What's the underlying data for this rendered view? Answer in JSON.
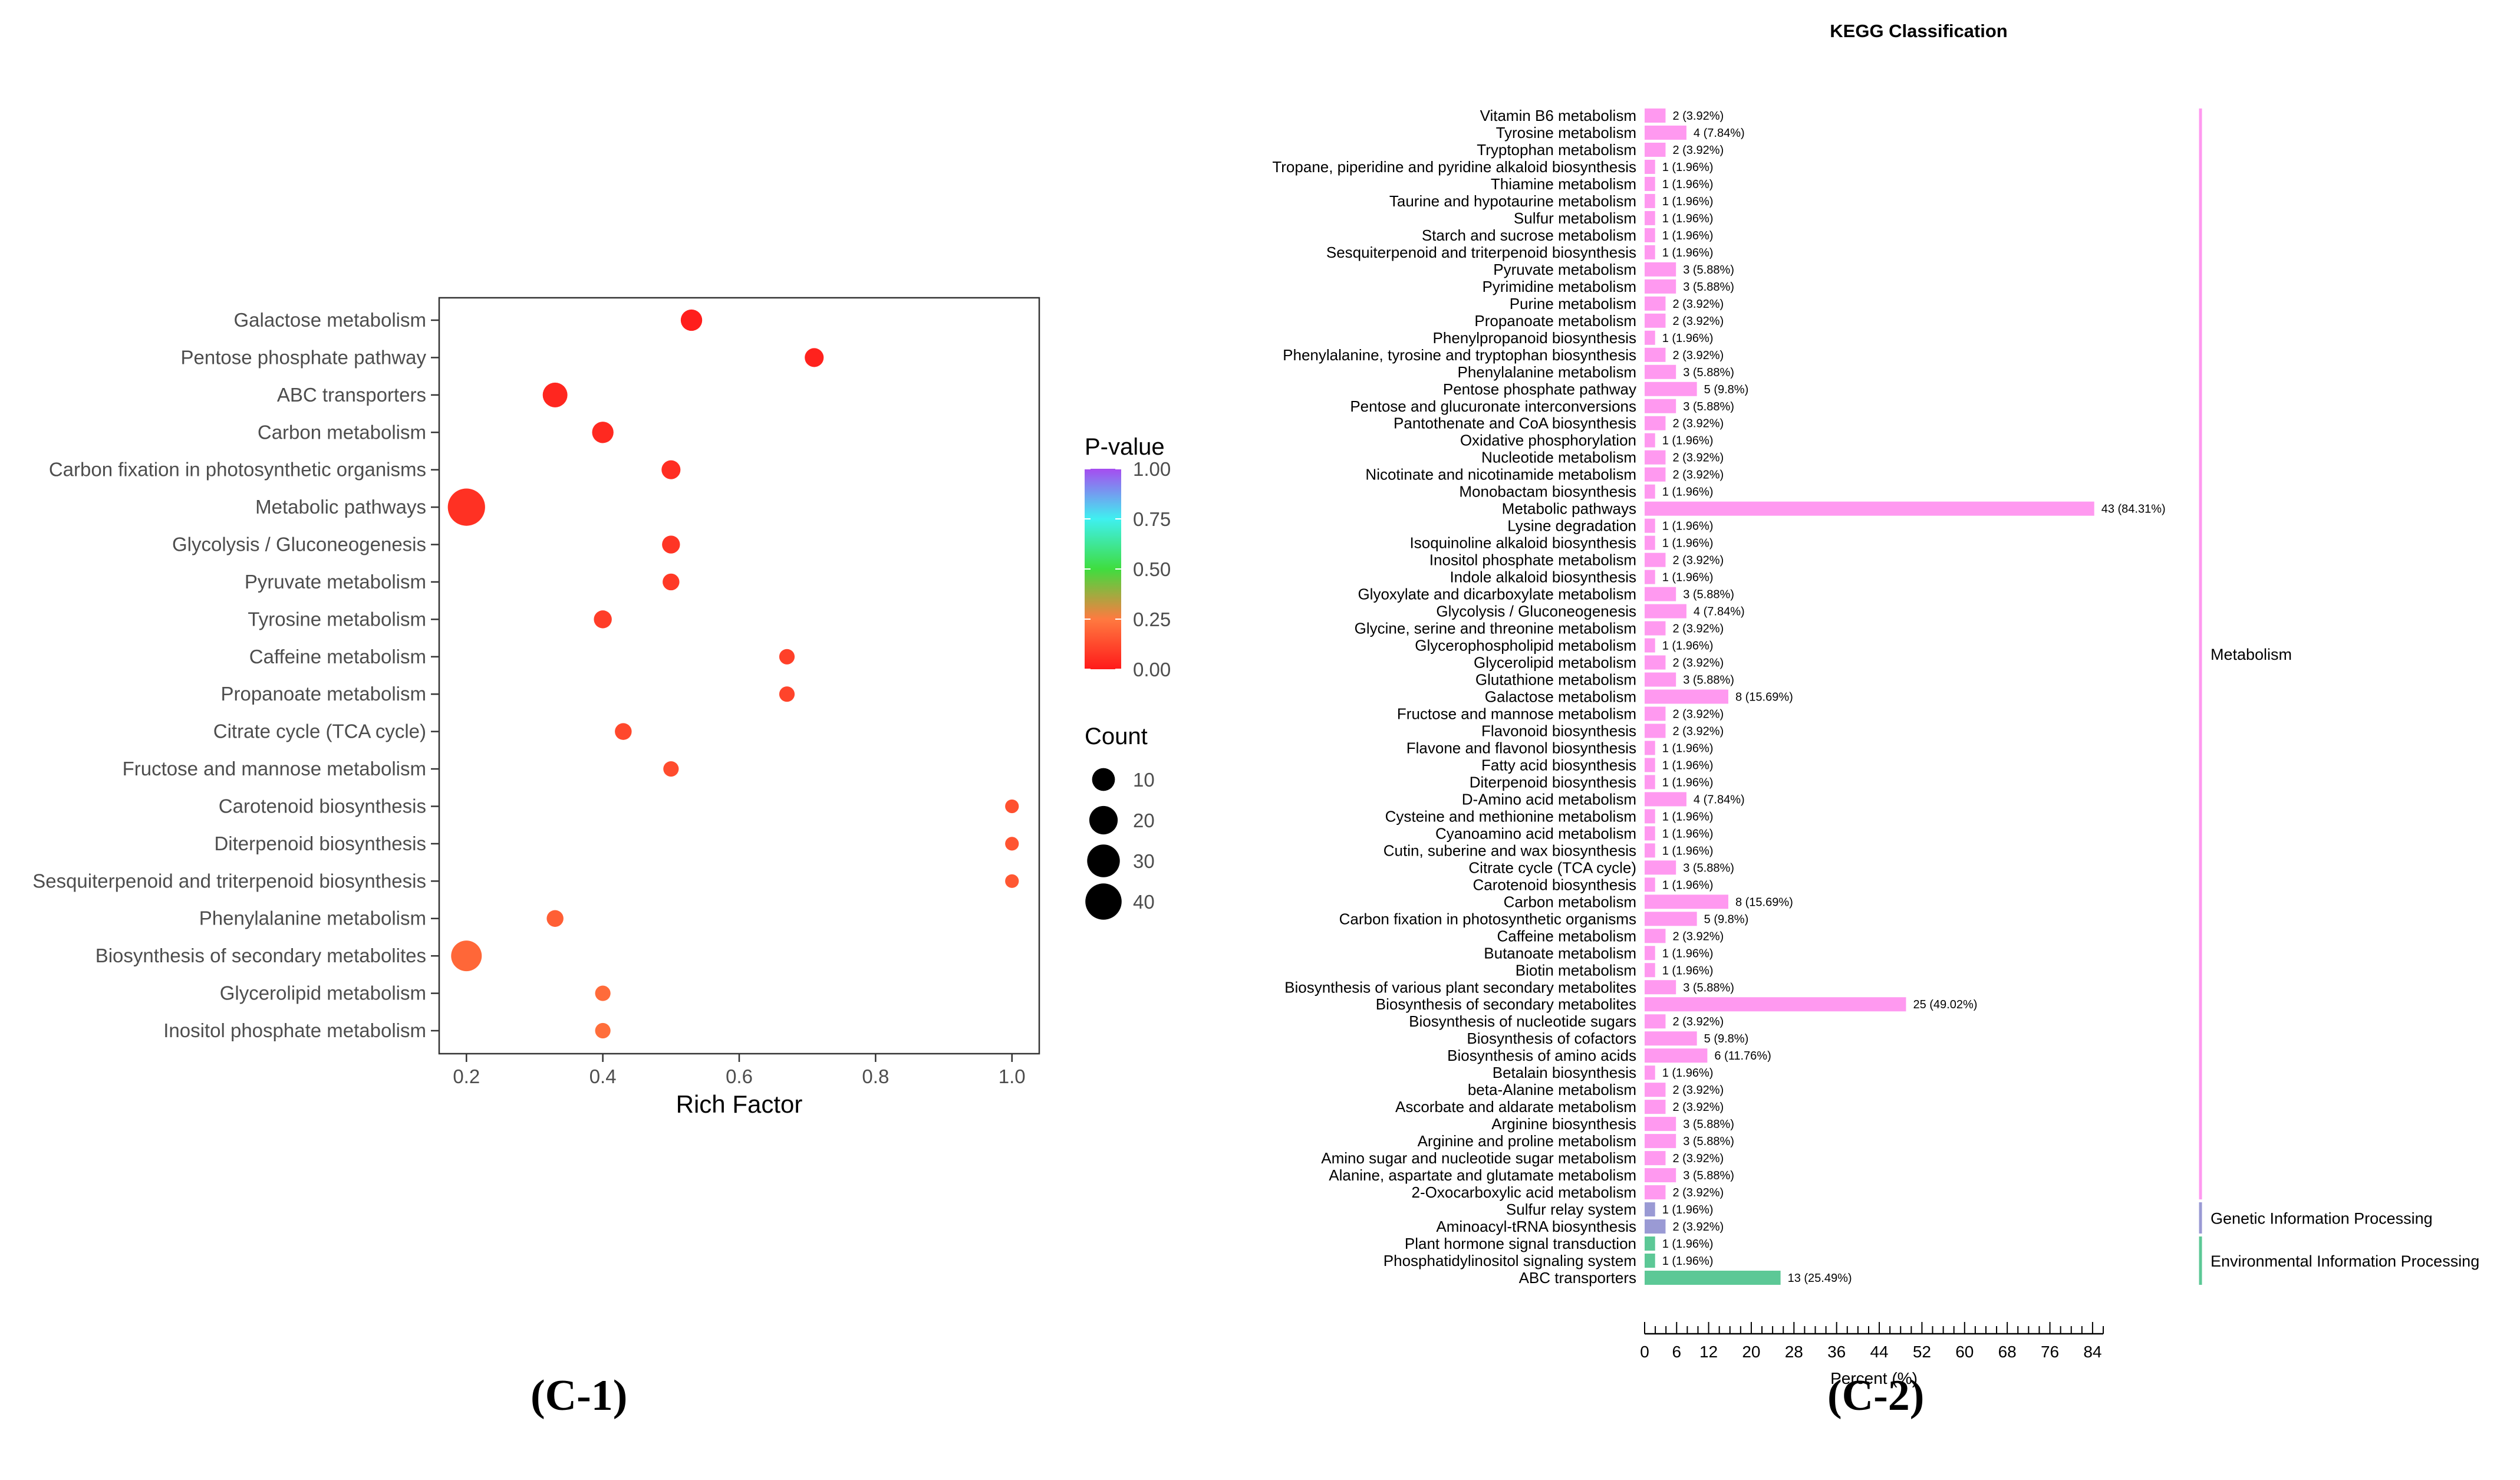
{
  "panel_labels": {
    "c1": "(C-1)",
    "c2": "(C-2)"
  },
  "chart_data": [
    {
      "type": "scatter",
      "title": "",
      "xlabel": "Rich Factor",
      "ylabel": "",
      "xlim": [
        0.16,
        1.04
      ],
      "xticks": [
        0.2,
        0.4,
        0.6,
        0.8,
        1.0
      ],
      "xtick_labels": [
        "0.2",
        "0.4",
        "0.6",
        "0.8",
        "1.0"
      ],
      "grid": false,
      "legend_position": "right",
      "color_legend": {
        "title": "P-value",
        "ticks": [
          1.0,
          0.75,
          0.5,
          0.25,
          0.0
        ],
        "tick_labels": [
          "1.00",
          "0.75",
          "0.50",
          "0.25",
          "0.00"
        ],
        "colors": {
          "p0": "#ff1a1a",
          "p025": "#ff7a40",
          "p050": "#3fdd3f",
          "p075": "#3ff0f0",
          "p100": "#a64cf0"
        }
      },
      "size_legend": {
        "title": "Count",
        "values": [
          10,
          20,
          30,
          40
        ],
        "labels": [
          "10",
          "20",
          "30",
          "40"
        ]
      },
      "points": [
        {
          "name": "Galactose metabolism",
          "rich_factor": 0.53,
          "count": 8,
          "p_value": 0.01
        },
        {
          "name": "Pentose phosphate pathway",
          "rich_factor": 0.71,
          "count": 5,
          "p_value": 0.02
        },
        {
          "name": "ABC transporters",
          "rich_factor": 0.33,
          "count": 13,
          "p_value": 0.03
        },
        {
          "name": "Carbon metabolism",
          "rich_factor": 0.4,
          "count": 8,
          "p_value": 0.04
        },
        {
          "name": "Carbon fixation in photosynthetic organisms",
          "rich_factor": 0.5,
          "count": 5,
          "p_value": 0.05
        },
        {
          "name": "Metabolic pathways",
          "rich_factor": 0.2,
          "count": 43,
          "p_value": 0.06
        },
        {
          "name": "Glycolysis / Gluconeogenesis",
          "rich_factor": 0.5,
          "count": 4,
          "p_value": 0.07
        },
        {
          "name": "Pyruvate metabolism",
          "rich_factor": 0.5,
          "count": 3,
          "p_value": 0.08
        },
        {
          "name": "Tyrosine metabolism",
          "rich_factor": 0.4,
          "count": 4,
          "p_value": 0.09
        },
        {
          "name": "Caffeine metabolism",
          "rich_factor": 0.67,
          "count": 2,
          "p_value": 0.1
        },
        {
          "name": "Propanoate metabolism",
          "rich_factor": 0.67,
          "count": 2,
          "p_value": 0.11
        },
        {
          "name": "Citrate cycle (TCA cycle)",
          "rich_factor": 0.43,
          "count": 3,
          "p_value": 0.12
        },
        {
          "name": "Fructose and mannose metabolism",
          "rich_factor": 0.5,
          "count": 2,
          "p_value": 0.13
        },
        {
          "name": "Carotenoid biosynthesis",
          "rich_factor": 1.0,
          "count": 1,
          "p_value": 0.14
        },
        {
          "name": "Diterpenoid biosynthesis",
          "rich_factor": 1.0,
          "count": 1,
          "p_value": 0.15
        },
        {
          "name": "Sesquiterpenoid and triterpenoid biosynthesis",
          "rich_factor": 1.0,
          "count": 1,
          "p_value": 0.16
        },
        {
          "name": "Phenylalanine metabolism",
          "rich_factor": 0.33,
          "count": 3,
          "p_value": 0.18
        },
        {
          "name": "Biosynthesis of secondary metabolites",
          "rich_factor": 0.2,
          "count": 25,
          "p_value": 0.2
        },
        {
          "name": "Glycerolipid metabolism",
          "rich_factor": 0.4,
          "count": 2,
          "p_value": 0.21
        },
        {
          "name": "Inositol phosphate metabolism",
          "rich_factor": 0.4,
          "count": 2,
          "p_value": 0.22
        }
      ]
    },
    {
      "type": "bar",
      "orientation": "horizontal",
      "title": "KEGG Classification",
      "xlabel": "Percent (%)",
      "ylabel": "",
      "xlim": [
        0,
        86
      ],
      "xticks": [
        0,
        6,
        12,
        20,
        28,
        36,
        44,
        52,
        60,
        68,
        76,
        84
      ],
      "xtick_labels": [
        "0",
        "6",
        "12",
        "20",
        "28",
        "36",
        "44",
        "52",
        "60",
        "68",
        "76",
        "84"
      ],
      "grid": false,
      "groups": [
        {
          "name": "Metabolism",
          "color": "#ff99f0"
        },
        {
          "name": "Genetic Information Processing",
          "color": "#9a9ad4"
        },
        {
          "name": "Environmental Information Processing",
          "color": "#5cc896"
        }
      ],
      "bars": [
        {
          "name": "Vitamin B6 metabolism",
          "count": 2,
          "percent": 3.92,
          "label": "2 (3.92%)",
          "group": 0
        },
        {
          "name": "Tyrosine metabolism",
          "count": 4,
          "percent": 7.84,
          "label": "4 (7.84%)",
          "group": 0
        },
        {
          "name": "Tryptophan metabolism",
          "count": 2,
          "percent": 3.92,
          "label": "2 (3.92%)",
          "group": 0
        },
        {
          "name": "Tropane, piperidine and pyridine alkaloid biosynthesis",
          "count": 1,
          "percent": 1.96,
          "label": "1 (1.96%)",
          "group": 0
        },
        {
          "name": "Thiamine metabolism",
          "count": 1,
          "percent": 1.96,
          "label": "1 (1.96%)",
          "group": 0
        },
        {
          "name": "Taurine and hypotaurine metabolism",
          "count": 1,
          "percent": 1.96,
          "label": "1 (1.96%)",
          "group": 0
        },
        {
          "name": "Sulfur metabolism",
          "count": 1,
          "percent": 1.96,
          "label": "1 (1.96%)",
          "group": 0
        },
        {
          "name": "Starch and sucrose metabolism",
          "count": 1,
          "percent": 1.96,
          "label": "1 (1.96%)",
          "group": 0
        },
        {
          "name": "Sesquiterpenoid and triterpenoid biosynthesis",
          "count": 1,
          "percent": 1.96,
          "label": "1 (1.96%)",
          "group": 0
        },
        {
          "name": "Pyruvate metabolism",
          "count": 3,
          "percent": 5.88,
          "label": "3 (5.88%)",
          "group": 0
        },
        {
          "name": "Pyrimidine metabolism",
          "count": 3,
          "percent": 5.88,
          "label": "3 (5.88%)",
          "group": 0
        },
        {
          "name": "Purine metabolism",
          "count": 2,
          "percent": 3.92,
          "label": "2 (3.92%)",
          "group": 0
        },
        {
          "name": "Propanoate metabolism",
          "count": 2,
          "percent": 3.92,
          "label": "2 (3.92%)",
          "group": 0
        },
        {
          "name": "Phenylpropanoid biosynthesis",
          "count": 1,
          "percent": 1.96,
          "label": "1 (1.96%)",
          "group": 0
        },
        {
          "name": "Phenylalanine, tyrosine and tryptophan biosynthesis",
          "count": 2,
          "percent": 3.92,
          "label": "2 (3.92%)",
          "group": 0
        },
        {
          "name": "Phenylalanine metabolism",
          "count": 3,
          "percent": 5.88,
          "label": "3 (5.88%)",
          "group": 0
        },
        {
          "name": "Pentose phosphate pathway",
          "count": 5,
          "percent": 9.8,
          "label": "5 (9.8%)",
          "group": 0
        },
        {
          "name": "Pentose and glucuronate interconversions",
          "count": 3,
          "percent": 5.88,
          "label": "3 (5.88%)",
          "group": 0
        },
        {
          "name": "Pantothenate and CoA biosynthesis",
          "count": 2,
          "percent": 3.92,
          "label": "2 (3.92%)",
          "group": 0
        },
        {
          "name": "Oxidative phosphorylation",
          "count": 1,
          "percent": 1.96,
          "label": "1 (1.96%)",
          "group": 0
        },
        {
          "name": "Nucleotide metabolism",
          "count": 2,
          "percent": 3.92,
          "label": "2 (3.92%)",
          "group": 0
        },
        {
          "name": "Nicotinate and nicotinamide metabolism",
          "count": 2,
          "percent": 3.92,
          "label": "2 (3.92%)",
          "group": 0
        },
        {
          "name": "Monobactam biosynthesis",
          "count": 1,
          "percent": 1.96,
          "label": "1 (1.96%)",
          "group": 0
        },
        {
          "name": "Metabolic pathways",
          "count": 43,
          "percent": 84.31,
          "label": "43 (84.31%)",
          "group": 0
        },
        {
          "name": "Lysine degradation",
          "count": 1,
          "percent": 1.96,
          "label": "1 (1.96%)",
          "group": 0
        },
        {
          "name": "Isoquinoline alkaloid biosynthesis",
          "count": 1,
          "percent": 1.96,
          "label": "1 (1.96%)",
          "group": 0
        },
        {
          "name": "Inositol phosphate metabolism",
          "count": 2,
          "percent": 3.92,
          "label": "2 (3.92%)",
          "group": 0
        },
        {
          "name": "Indole alkaloid biosynthesis",
          "count": 1,
          "percent": 1.96,
          "label": "1 (1.96%)",
          "group": 0
        },
        {
          "name": "Glyoxylate and dicarboxylate metabolism",
          "count": 3,
          "percent": 5.88,
          "label": "3 (5.88%)",
          "group": 0
        },
        {
          "name": "Glycolysis / Gluconeogenesis",
          "count": 4,
          "percent": 7.84,
          "label": "4 (7.84%)",
          "group": 0
        },
        {
          "name": "Glycine, serine and threonine metabolism",
          "count": 2,
          "percent": 3.92,
          "label": "2 (3.92%)",
          "group": 0
        },
        {
          "name": "Glycerophospholipid metabolism",
          "count": 1,
          "percent": 1.96,
          "label": "1 (1.96%)",
          "group": 0
        },
        {
          "name": "Glycerolipid metabolism",
          "count": 2,
          "percent": 3.92,
          "label": "2 (3.92%)",
          "group": 0
        },
        {
          "name": "Glutathione metabolism",
          "count": 3,
          "percent": 5.88,
          "label": "3 (5.88%)",
          "group": 0
        },
        {
          "name": "Galactose metabolism",
          "count": 8,
          "percent": 15.69,
          "label": "8 (15.69%)",
          "group": 0
        },
        {
          "name": "Fructose and mannose metabolism",
          "count": 2,
          "percent": 3.92,
          "label": "2 (3.92%)",
          "group": 0
        },
        {
          "name": "Flavonoid biosynthesis",
          "count": 2,
          "percent": 3.92,
          "label": "2 (3.92%)",
          "group": 0
        },
        {
          "name": "Flavone and flavonol biosynthesis",
          "count": 1,
          "percent": 1.96,
          "label": "1 (1.96%)",
          "group": 0
        },
        {
          "name": "Fatty acid biosynthesis",
          "count": 1,
          "percent": 1.96,
          "label": "1 (1.96%)",
          "group": 0
        },
        {
          "name": "Diterpenoid biosynthesis",
          "count": 1,
          "percent": 1.96,
          "label": "1 (1.96%)",
          "group": 0
        },
        {
          "name": "D-Amino acid metabolism",
          "count": 4,
          "percent": 7.84,
          "label": "4 (7.84%)",
          "group": 0
        },
        {
          "name": "Cysteine and methionine metabolism",
          "count": 1,
          "percent": 1.96,
          "label": "1 (1.96%)",
          "group": 0
        },
        {
          "name": "Cyanoamino acid metabolism",
          "count": 1,
          "percent": 1.96,
          "label": "1 (1.96%)",
          "group": 0
        },
        {
          "name": "Cutin, suberine and wax biosynthesis",
          "count": 1,
          "percent": 1.96,
          "label": "1 (1.96%)",
          "group": 0
        },
        {
          "name": "Citrate cycle (TCA cycle)",
          "count": 3,
          "percent": 5.88,
          "label": "3 (5.88%)",
          "group": 0
        },
        {
          "name": "Carotenoid biosynthesis",
          "count": 1,
          "percent": 1.96,
          "label": "1 (1.96%)",
          "group": 0
        },
        {
          "name": "Carbon metabolism",
          "count": 8,
          "percent": 15.69,
          "label": "8 (15.69%)",
          "group": 0
        },
        {
          "name": "Carbon fixation in photosynthetic organisms",
          "count": 5,
          "percent": 9.8,
          "label": "5 (9.8%)",
          "group": 0
        },
        {
          "name": "Caffeine metabolism",
          "count": 2,
          "percent": 3.92,
          "label": "2 (3.92%)",
          "group": 0
        },
        {
          "name": "Butanoate metabolism",
          "count": 1,
          "percent": 1.96,
          "label": "1 (1.96%)",
          "group": 0
        },
        {
          "name": "Biotin metabolism",
          "count": 1,
          "percent": 1.96,
          "label": "1 (1.96%)",
          "group": 0
        },
        {
          "name": "Biosynthesis of various plant secondary metabolites",
          "count": 3,
          "percent": 5.88,
          "label": "3 (5.88%)",
          "group": 0
        },
        {
          "name": "Biosynthesis of secondary metabolites",
          "count": 25,
          "percent": 49.02,
          "label": "25 (49.02%)",
          "group": 0
        },
        {
          "name": "Biosynthesis of nucleotide sugars",
          "count": 2,
          "percent": 3.92,
          "label": "2 (3.92%)",
          "group": 0
        },
        {
          "name": "Biosynthesis of cofactors",
          "count": 5,
          "percent": 9.8,
          "label": "5 (9.8%)",
          "group": 0
        },
        {
          "name": "Biosynthesis of amino acids",
          "count": 6,
          "percent": 11.76,
          "label": "6 (11.76%)",
          "group": 0
        },
        {
          "name": "Betalain biosynthesis",
          "count": 1,
          "percent": 1.96,
          "label": "1 (1.96%)",
          "group": 0
        },
        {
          "name": "beta-Alanine metabolism",
          "count": 2,
          "percent": 3.92,
          "label": "2 (3.92%)",
          "group": 0
        },
        {
          "name": "Ascorbate and aldarate metabolism",
          "count": 2,
          "percent": 3.92,
          "label": "2 (3.92%)",
          "group": 0
        },
        {
          "name": "Arginine biosynthesis",
          "count": 3,
          "percent": 5.88,
          "label": "3 (5.88%)",
          "group": 0
        },
        {
          "name": "Arginine and proline metabolism",
          "count": 3,
          "percent": 5.88,
          "label": "3 (5.88%)",
          "group": 0
        },
        {
          "name": "Amino sugar and nucleotide sugar metabolism",
          "count": 2,
          "percent": 3.92,
          "label": "2 (3.92%)",
          "group": 0
        },
        {
          "name": "Alanine, aspartate and glutamate metabolism",
          "count": 3,
          "percent": 5.88,
          "label": "3 (5.88%)",
          "group": 0
        },
        {
          "name": "2-Oxocarboxylic acid metabolism",
          "count": 2,
          "percent": 3.92,
          "label": "2 (3.92%)",
          "group": 0
        },
        {
          "name": "Sulfur relay system",
          "count": 1,
          "percent": 1.96,
          "label": "1 (1.96%)",
          "group": 1
        },
        {
          "name": "Aminoacyl-tRNA biosynthesis",
          "count": 2,
          "percent": 3.92,
          "label": "2 (3.92%)",
          "group": 1
        },
        {
          "name": "Plant hormone signal transduction",
          "count": 1,
          "percent": 1.96,
          "label": "1 (1.96%)",
          "group": 2
        },
        {
          "name": "Phosphatidylinositol signaling system",
          "count": 1,
          "percent": 1.96,
          "label": "1 (1.96%)",
          "group": 2
        },
        {
          "name": "ABC transporters",
          "count": 13,
          "percent": 25.49,
          "label": "13 (25.49%)",
          "group": 2
        }
      ]
    }
  ]
}
